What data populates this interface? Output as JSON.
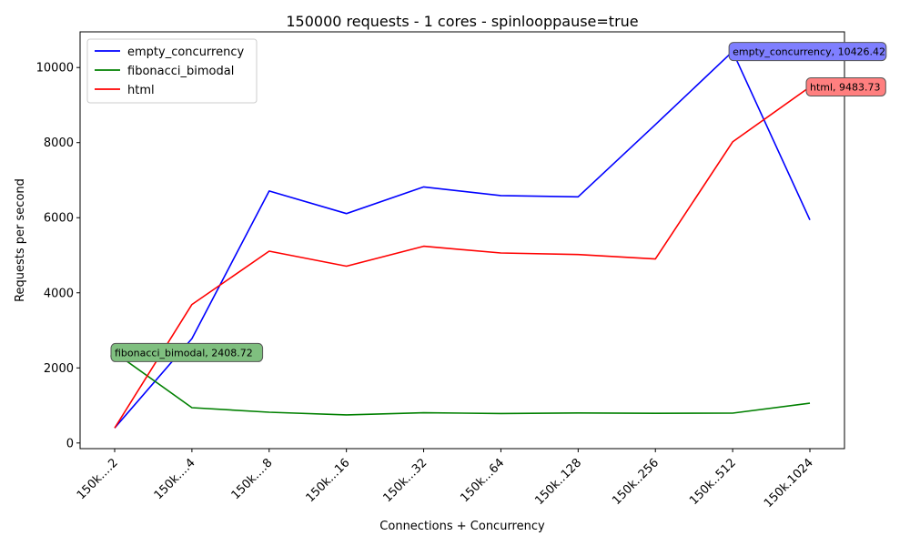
{
  "chart_data": {
    "type": "line",
    "title": "150000 requests - 1 cores - spinlooppause=true",
    "xlabel": "Connections + Concurrency",
    "ylabel": "Requests per second",
    "categories": [
      "150k....2",
      "150k....4",
      "150k....8",
      "150k...16",
      "150k...32",
      "150k...64",
      "150k..128",
      "150k..256",
      "150k..512",
      "150k.1024"
    ],
    "ylim": [
      -150,
      10950
    ],
    "yticks": [
      0,
      2000,
      4000,
      6000,
      8000,
      10000
    ],
    "grid": false,
    "legend_position": "top-left",
    "series": [
      {
        "name": "empty_concurrency",
        "color": "#0000ff",
        "values": [
          400,
          2780,
          6710,
          6110,
          6820,
          6590,
          6555,
          8480,
          10426.42,
          5940
        ]
      },
      {
        "name": "fibonacci_bimodal",
        "color": "#008000",
        "values": [
          2408.72,
          940,
          820,
          750,
          805,
          785,
          800,
          790,
          795,
          1060
        ]
      },
      {
        "name": "html",
        "color": "#ff0000",
        "values": [
          400,
          3690,
          5110,
          4710,
          5240,
          5060,
          5020,
          4900,
          8020,
          9483.73
        ]
      }
    ],
    "annotations": [
      {
        "series": 0,
        "index": 8,
        "text": "empty_concurrency, 10426.42",
        "color": "#7f7fff"
      },
      {
        "series": 2,
        "index": 9,
        "text": "html, 9483.73",
        "color": "#ff7f7f"
      },
      {
        "series": 1,
        "index": 0,
        "text": "fibonacci_bimodal, 2408.72",
        "color": "#7fbf7f"
      }
    ]
  }
}
